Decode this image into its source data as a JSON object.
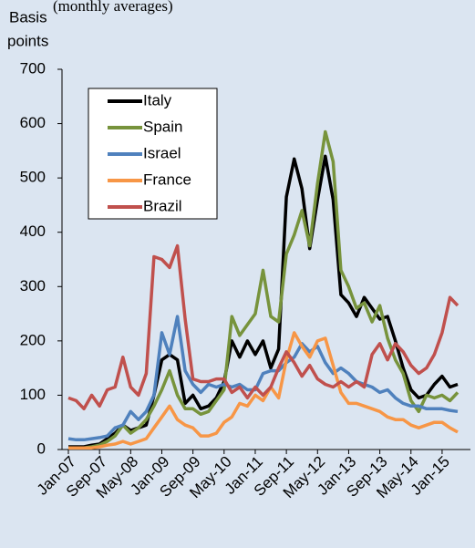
{
  "chart_data": {
    "type": "line",
    "subtitle": "(monthly averages)",
    "y_label": [
      "Basis",
      "points"
    ],
    "categories": [
      "Jan-07",
      null,
      null,
      null,
      "Sep-07",
      null,
      null,
      null,
      "May-08",
      null,
      null,
      null,
      "Jan-09",
      null,
      null,
      null,
      "Sep-09",
      null,
      null,
      null,
      "May-10",
      null,
      null,
      null,
      "Jan-11",
      null,
      null,
      null,
      "Sep-11",
      null,
      null,
      null,
      "May-12",
      null,
      null,
      null,
      "Jan-13",
      null,
      null,
      null,
      "Sep-13",
      null,
      null,
      null,
      "May-14",
      null,
      null,
      null,
      "Jan-15",
      null,
      null
    ],
    "ylim": [
      0,
      700
    ],
    "yticks": [
      0,
      100,
      200,
      300,
      400,
      500,
      600,
      700
    ],
    "legend": "top-left",
    "series": [
      {
        "name": "Italy",
        "color": "#000000",
        "values": [
          5,
          5,
          5,
          8,
          10,
          20,
          30,
          45,
          35,
          40,
          45,
          100,
          165,
          175,
          165,
          85,
          100,
          75,
          80,
          95,
          125,
          200,
          170,
          200,
          175,
          200,
          150,
          185,
          465,
          535,
          480,
          370,
          460,
          540,
          460,
          285,
          270,
          245,
          280,
          260,
          240,
          245,
          200,
          150,
          110,
          95,
          100,
          120,
          135,
          115,
          120
        ]
      },
      {
        "name": "Spain",
        "color": "#77933c",
        "values": [
          3,
          3,
          3,
          5,
          8,
          15,
          25,
          45,
          30,
          40,
          55,
          80,
          110,
          145,
          100,
          75,
          75,
          65,
          70,
          90,
          110,
          245,
          210,
          230,
          250,
          330,
          245,
          235,
          360,
          395,
          440,
          375,
          490,
          585,
          530,
          330,
          300,
          260,
          270,
          235,
          265,
          205,
          165,
          140,
          90,
          70,
          100,
          95,
          100,
          90,
          105
        ]
      },
      {
        "name": "Israel",
        "color": "#4f81bd",
        "values": [
          20,
          18,
          18,
          20,
          22,
          25,
          40,
          45,
          70,
          55,
          70,
          100,
          215,
          175,
          245,
          145,
          120,
          105,
          120,
          115,
          120,
          115,
          120,
          110,
          110,
          140,
          145,
          145,
          160,
          170,
          195,
          180,
          190,
          160,
          140,
          150,
          140,
          125,
          120,
          115,
          105,
          110,
          95,
          85,
          80,
          80,
          75,
          75,
          75,
          72,
          70
        ]
      },
      {
        "name": "France",
        "color": "#f79646",
        "values": [
          3,
          3,
          3,
          3,
          5,
          8,
          10,
          15,
          10,
          15,
          20,
          40,
          60,
          80,
          55,
          45,
          40,
          25,
          25,
          30,
          50,
          60,
          85,
          80,
          100,
          90,
          115,
          95,
          165,
          215,
          190,
          170,
          200,
          205,
          155,
          105,
          85,
          85,
          80,
          75,
          70,
          60,
          55,
          55,
          45,
          40,
          45,
          50,
          50,
          40,
          32
        ]
      },
      {
        "name": "Brazil",
        "color": "#c0504d",
        "values": [
          95,
          90,
          75,
          100,
          80,
          110,
          115,
          170,
          115,
          100,
          140,
          355,
          350,
          335,
          375,
          240,
          130,
          125,
          125,
          130,
          130,
          105,
          115,
          95,
          115,
          100,
          115,
          150,
          180,
          160,
          135,
          155,
          130,
          120,
          115,
          125,
          115,
          125,
          115,
          175,
          195,
          165,
          195,
          180,
          155,
          140,
          150,
          175,
          215,
          280,
          265
        ]
      }
    ]
  }
}
